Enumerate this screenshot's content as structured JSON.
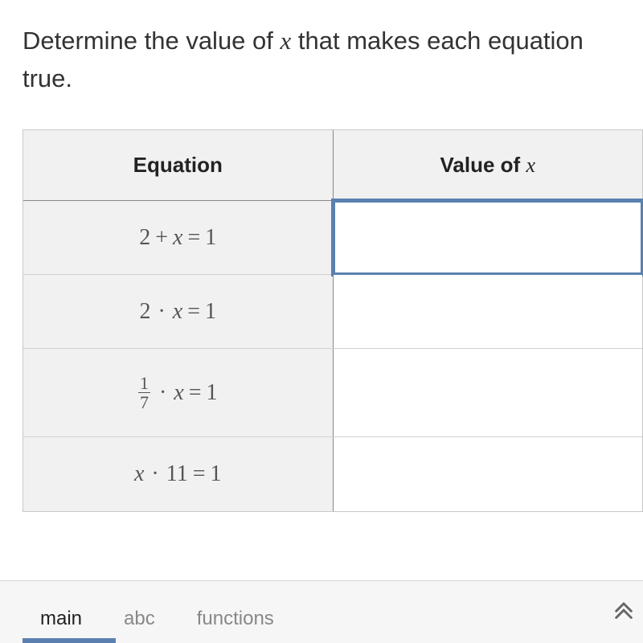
{
  "prompt": {
    "prefix": "Determine the value of ",
    "var": "x",
    "suffix": " that makes each equation true."
  },
  "headers": {
    "equation": "Equation",
    "value_prefix": "Value of ",
    "value_var": "x"
  },
  "rows": [
    {
      "eq_parts": [
        {
          "t": "mn",
          "v": "2"
        },
        {
          "t": "mo",
          "v": "+"
        },
        {
          "t": "mi",
          "v": "x"
        },
        {
          "t": "mo",
          "v": "="
        },
        {
          "t": "mn",
          "v": "1"
        }
      ],
      "active": true
    },
    {
      "eq_parts": [
        {
          "t": "mn",
          "v": "2"
        },
        {
          "t": "dot",
          "v": "·"
        },
        {
          "t": "mi",
          "v": "x"
        },
        {
          "t": "mo",
          "v": "="
        },
        {
          "t": "mn",
          "v": "1"
        }
      ],
      "active": false
    },
    {
      "tall": true,
      "eq_parts": [
        {
          "t": "frac",
          "num": "1",
          "den": "7"
        },
        {
          "t": "dot",
          "v": "·"
        },
        {
          "t": "mi",
          "v": "x"
        },
        {
          "t": "mo",
          "v": "="
        },
        {
          "t": "mn",
          "v": "1"
        }
      ],
      "active": false
    },
    {
      "eq_parts": [
        {
          "t": "mi",
          "v": "x"
        },
        {
          "t": "dot",
          "v": "·"
        },
        {
          "t": "mn",
          "v": "11"
        },
        {
          "t": "mo",
          "v": "="
        },
        {
          "t": "mn",
          "v": "1"
        }
      ],
      "active": false
    }
  ],
  "tabs": {
    "main": "main",
    "abc": "abc",
    "functions": "functions"
  },
  "colors": {
    "accent": "#5a80b0",
    "header_bg": "#f1f1f1",
    "border_dark": "#888888",
    "border_light": "#d0d0d0",
    "text": "#333333",
    "math_text": "#555555"
  }
}
